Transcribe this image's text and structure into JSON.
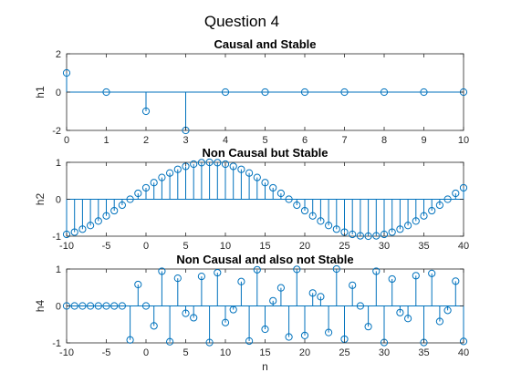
{
  "figure": {
    "suptitle": "Question 4",
    "stem_color": "#0072bd",
    "axis_color": "#262626"
  },
  "chart_data": [
    {
      "type": "stem",
      "title": "Causal and Stable",
      "xlabel": "",
      "ylabel": "h1",
      "xlim": [
        0,
        10
      ],
      "ylim": [
        -2,
        2
      ],
      "xticks": [
        0,
        1,
        2,
        3,
        4,
        5,
        6,
        7,
        8,
        9,
        10
      ],
      "yticks": [
        -2,
        0,
        2
      ],
      "grid": false,
      "n": [
        0,
        1,
        2,
        3,
        4,
        5,
        6,
        7,
        8,
        9,
        10
      ],
      "values": [
        1,
        0,
        -1,
        -2,
        0,
        0,
        0,
        0,
        0,
        0,
        0
      ]
    },
    {
      "type": "stem",
      "title": "Non Causal but Stable",
      "xlabel": "",
      "ylabel": "h2",
      "xlim": [
        -10,
        40
      ],
      "ylim": [
        -1,
        1
      ],
      "xticks": [
        -10,
        -5,
        0,
        5,
        10,
        15,
        20,
        25,
        30,
        35,
        40
      ],
      "yticks": [
        -1,
        0,
        1
      ],
      "grid": false,
      "n": [
        -10,
        -9,
        -8,
        -7,
        -6,
        -5,
        -4,
        -3,
        -2,
        -1,
        0,
        1,
        2,
        3,
        4,
        5,
        6,
        7,
        8,
        9,
        10,
        11,
        12,
        13,
        14,
        15,
        16,
        17,
        18,
        19,
        20,
        21,
        22,
        23,
        24,
        25,
        26,
        27,
        28,
        29,
        30,
        31,
        32,
        33,
        34,
        35,
        36,
        37,
        38,
        39,
        40
      ],
      "values": [
        -0.95,
        -0.89,
        -0.81,
        -0.71,
        -0.59,
        -0.45,
        -0.31,
        -0.16,
        0.0,
        0.16,
        0.31,
        0.45,
        0.59,
        0.71,
        0.81,
        0.89,
        0.95,
        0.99,
        1.0,
        0.99,
        0.95,
        0.89,
        0.81,
        0.71,
        0.59,
        0.45,
        0.31,
        0.16,
        0.0,
        -0.16,
        -0.31,
        -0.45,
        -0.59,
        -0.71,
        -0.81,
        -0.89,
        -0.95,
        -0.99,
        -1.0,
        -0.99,
        -0.95,
        -0.89,
        -0.81,
        -0.71,
        -0.59,
        -0.45,
        -0.31,
        -0.16,
        0.0,
        0.16,
        0.31
      ]
    },
    {
      "type": "stem",
      "title": "Non Causal and also not Stable",
      "xlabel": "n",
      "ylabel": "h4",
      "xlim": [
        -10,
        40
      ],
      "ylim": [
        -1,
        1
      ],
      "xticks": [
        -10,
        -5,
        0,
        5,
        10,
        15,
        20,
        25,
        30,
        35,
        40
      ],
      "yticks": [
        -1,
        0,
        1
      ],
      "grid": false,
      "n": [
        -10,
        -9,
        -8,
        -7,
        -6,
        -5,
        -4,
        -3,
        -2,
        -1,
        0,
        1,
        2,
        3,
        4,
        5,
        6,
        7,
        8,
        9,
        10,
        11,
        12,
        13,
        14,
        15,
        16,
        17,
        18,
        19,
        20,
        21,
        22,
        23,
        24,
        25,
        26,
        27,
        28,
        29,
        30,
        31,
        32,
        33,
        34,
        35,
        36,
        37,
        38,
        39,
        40
      ],
      "values": [
        0,
        0,
        0,
        0,
        0,
        0,
        0,
        0,
        -0.92,
        0.58,
        0,
        -0.54,
        0.94,
        -0.97,
        0.75,
        -0.2,
        -0.32,
        0.8,
        -0.99,
        0.9,
        -0.45,
        -0.1,
        0.66,
        -0.95,
        0.98,
        -0.63,
        0.14,
        0.49,
        -0.84,
        0.99,
        -0.8,
        0.35,
        0.25,
        -0.72,
        1.0,
        -0.9,
        0.56,
        0.0,
        -0.56,
        0.94,
        -0.99,
        0.73,
        -0.18,
        -0.34,
        0.82,
        -0.99,
        0.88,
        -0.42,
        -0.12,
        0.67,
        -0.96
      ]
    }
  ]
}
